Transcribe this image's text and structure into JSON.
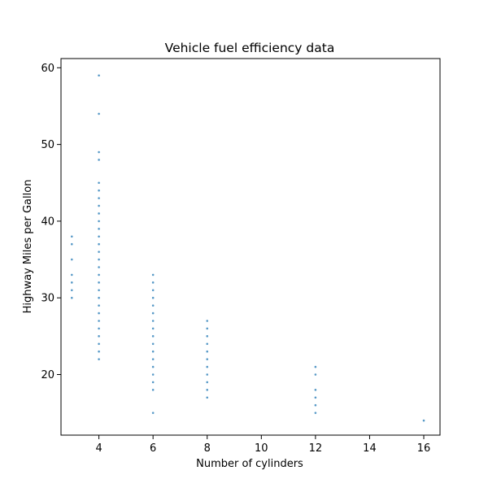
{
  "chart_data": {
    "type": "scatter",
    "title": "Vehicle fuel efficiency data",
    "xlabel": "Number of cylinders",
    "ylabel": "Highway Miles per Gallon",
    "xlim": [
      2.6,
      16.6
    ],
    "ylim": [
      12.1,
      61.2
    ],
    "xticks": [
      4,
      6,
      8,
      10,
      12,
      14,
      16
    ],
    "yticks": [
      20,
      30,
      40,
      50,
      60
    ],
    "grid": false,
    "marker_color": "#1f77b4",
    "series": [
      {
        "points": [
          {
            "x": 3,
            "y": 30
          },
          {
            "x": 3,
            "y": 31
          },
          {
            "x": 3,
            "y": 32
          },
          {
            "x": 3,
            "y": 33
          },
          {
            "x": 3,
            "y": 35
          },
          {
            "x": 3,
            "y": 37
          },
          {
            "x": 3,
            "y": 38
          },
          {
            "x": 4,
            "y": 22
          },
          {
            "x": 4,
            "y": 23
          },
          {
            "x": 4,
            "y": 24
          },
          {
            "x": 4,
            "y": 25
          },
          {
            "x": 4,
            "y": 26
          },
          {
            "x": 4,
            "y": 27
          },
          {
            "x": 4,
            "y": 28
          },
          {
            "x": 4,
            "y": 29
          },
          {
            "x": 4,
            "y": 30
          },
          {
            "x": 4,
            "y": 31
          },
          {
            "x": 4,
            "y": 32
          },
          {
            "x": 4,
            "y": 33
          },
          {
            "x": 4,
            "y": 34
          },
          {
            "x": 4,
            "y": 35
          },
          {
            "x": 4,
            "y": 36
          },
          {
            "x": 4,
            "y": 37
          },
          {
            "x": 4,
            "y": 38
          },
          {
            "x": 4,
            "y": 39
          },
          {
            "x": 4,
            "y": 40
          },
          {
            "x": 4,
            "y": 41
          },
          {
            "x": 4,
            "y": 42
          },
          {
            "x": 4,
            "y": 43
          },
          {
            "x": 4,
            "y": 44
          },
          {
            "x": 4,
            "y": 45
          },
          {
            "x": 4,
            "y": 48
          },
          {
            "x": 4,
            "y": 49
          },
          {
            "x": 4,
            "y": 54
          },
          {
            "x": 4,
            "y": 59
          },
          {
            "x": 6,
            "y": 15
          },
          {
            "x": 6,
            "y": 18
          },
          {
            "x": 6,
            "y": 19
          },
          {
            "x": 6,
            "y": 20
          },
          {
            "x": 6,
            "y": 21
          },
          {
            "x": 6,
            "y": 22
          },
          {
            "x": 6,
            "y": 23
          },
          {
            "x": 6,
            "y": 24
          },
          {
            "x": 6,
            "y": 25
          },
          {
            "x": 6,
            "y": 26
          },
          {
            "x": 6,
            "y": 27
          },
          {
            "x": 6,
            "y": 28
          },
          {
            "x": 6,
            "y": 29
          },
          {
            "x": 6,
            "y": 30
          },
          {
            "x": 6,
            "y": 31
          },
          {
            "x": 6,
            "y": 32
          },
          {
            "x": 6,
            "y": 33
          },
          {
            "x": 8,
            "y": 17
          },
          {
            "x": 8,
            "y": 18
          },
          {
            "x": 8,
            "y": 19
          },
          {
            "x": 8,
            "y": 20
          },
          {
            "x": 8,
            "y": 21
          },
          {
            "x": 8,
            "y": 22
          },
          {
            "x": 8,
            "y": 23
          },
          {
            "x": 8,
            "y": 24
          },
          {
            "x": 8,
            "y": 25
          },
          {
            "x": 8,
            "y": 26
          },
          {
            "x": 8,
            "y": 27
          },
          {
            "x": 12,
            "y": 15
          },
          {
            "x": 12,
            "y": 16
          },
          {
            "x": 12,
            "y": 17
          },
          {
            "x": 12,
            "y": 18
          },
          {
            "x": 12,
            "y": 20
          },
          {
            "x": 12,
            "y": 21
          },
          {
            "x": 16,
            "y": 14
          }
        ]
      }
    ]
  }
}
